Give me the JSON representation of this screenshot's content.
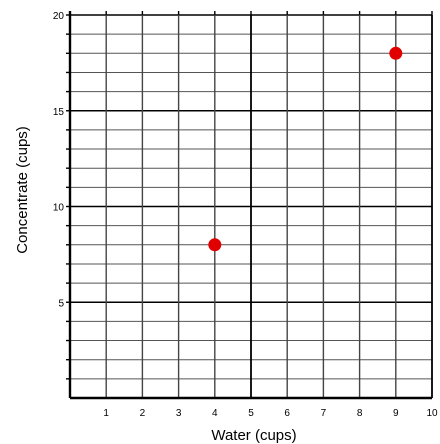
{
  "chart_data": {
    "type": "scatter",
    "title": "",
    "xlabel": "Water (cups)",
    "ylabel": "Concentrate (cups)",
    "xlim": [
      0,
      10
    ],
    "ylim": [
      0,
      20
    ],
    "x_ticks": [
      "1",
      "2",
      "3",
      "4",
      "5",
      "6",
      "7",
      "8",
      "9",
      "10"
    ],
    "y_ticks": [
      "5",
      "10",
      "15",
      "20"
    ],
    "grid": true,
    "series": [
      {
        "points": [
          {
            "x": 4,
            "y": 8
          },
          {
            "x": 9,
            "y": 18
          }
        ]
      }
    ],
    "colors": {
      "point": "#e00000",
      "grid": "#000000",
      "background": "#ffffff"
    }
  }
}
